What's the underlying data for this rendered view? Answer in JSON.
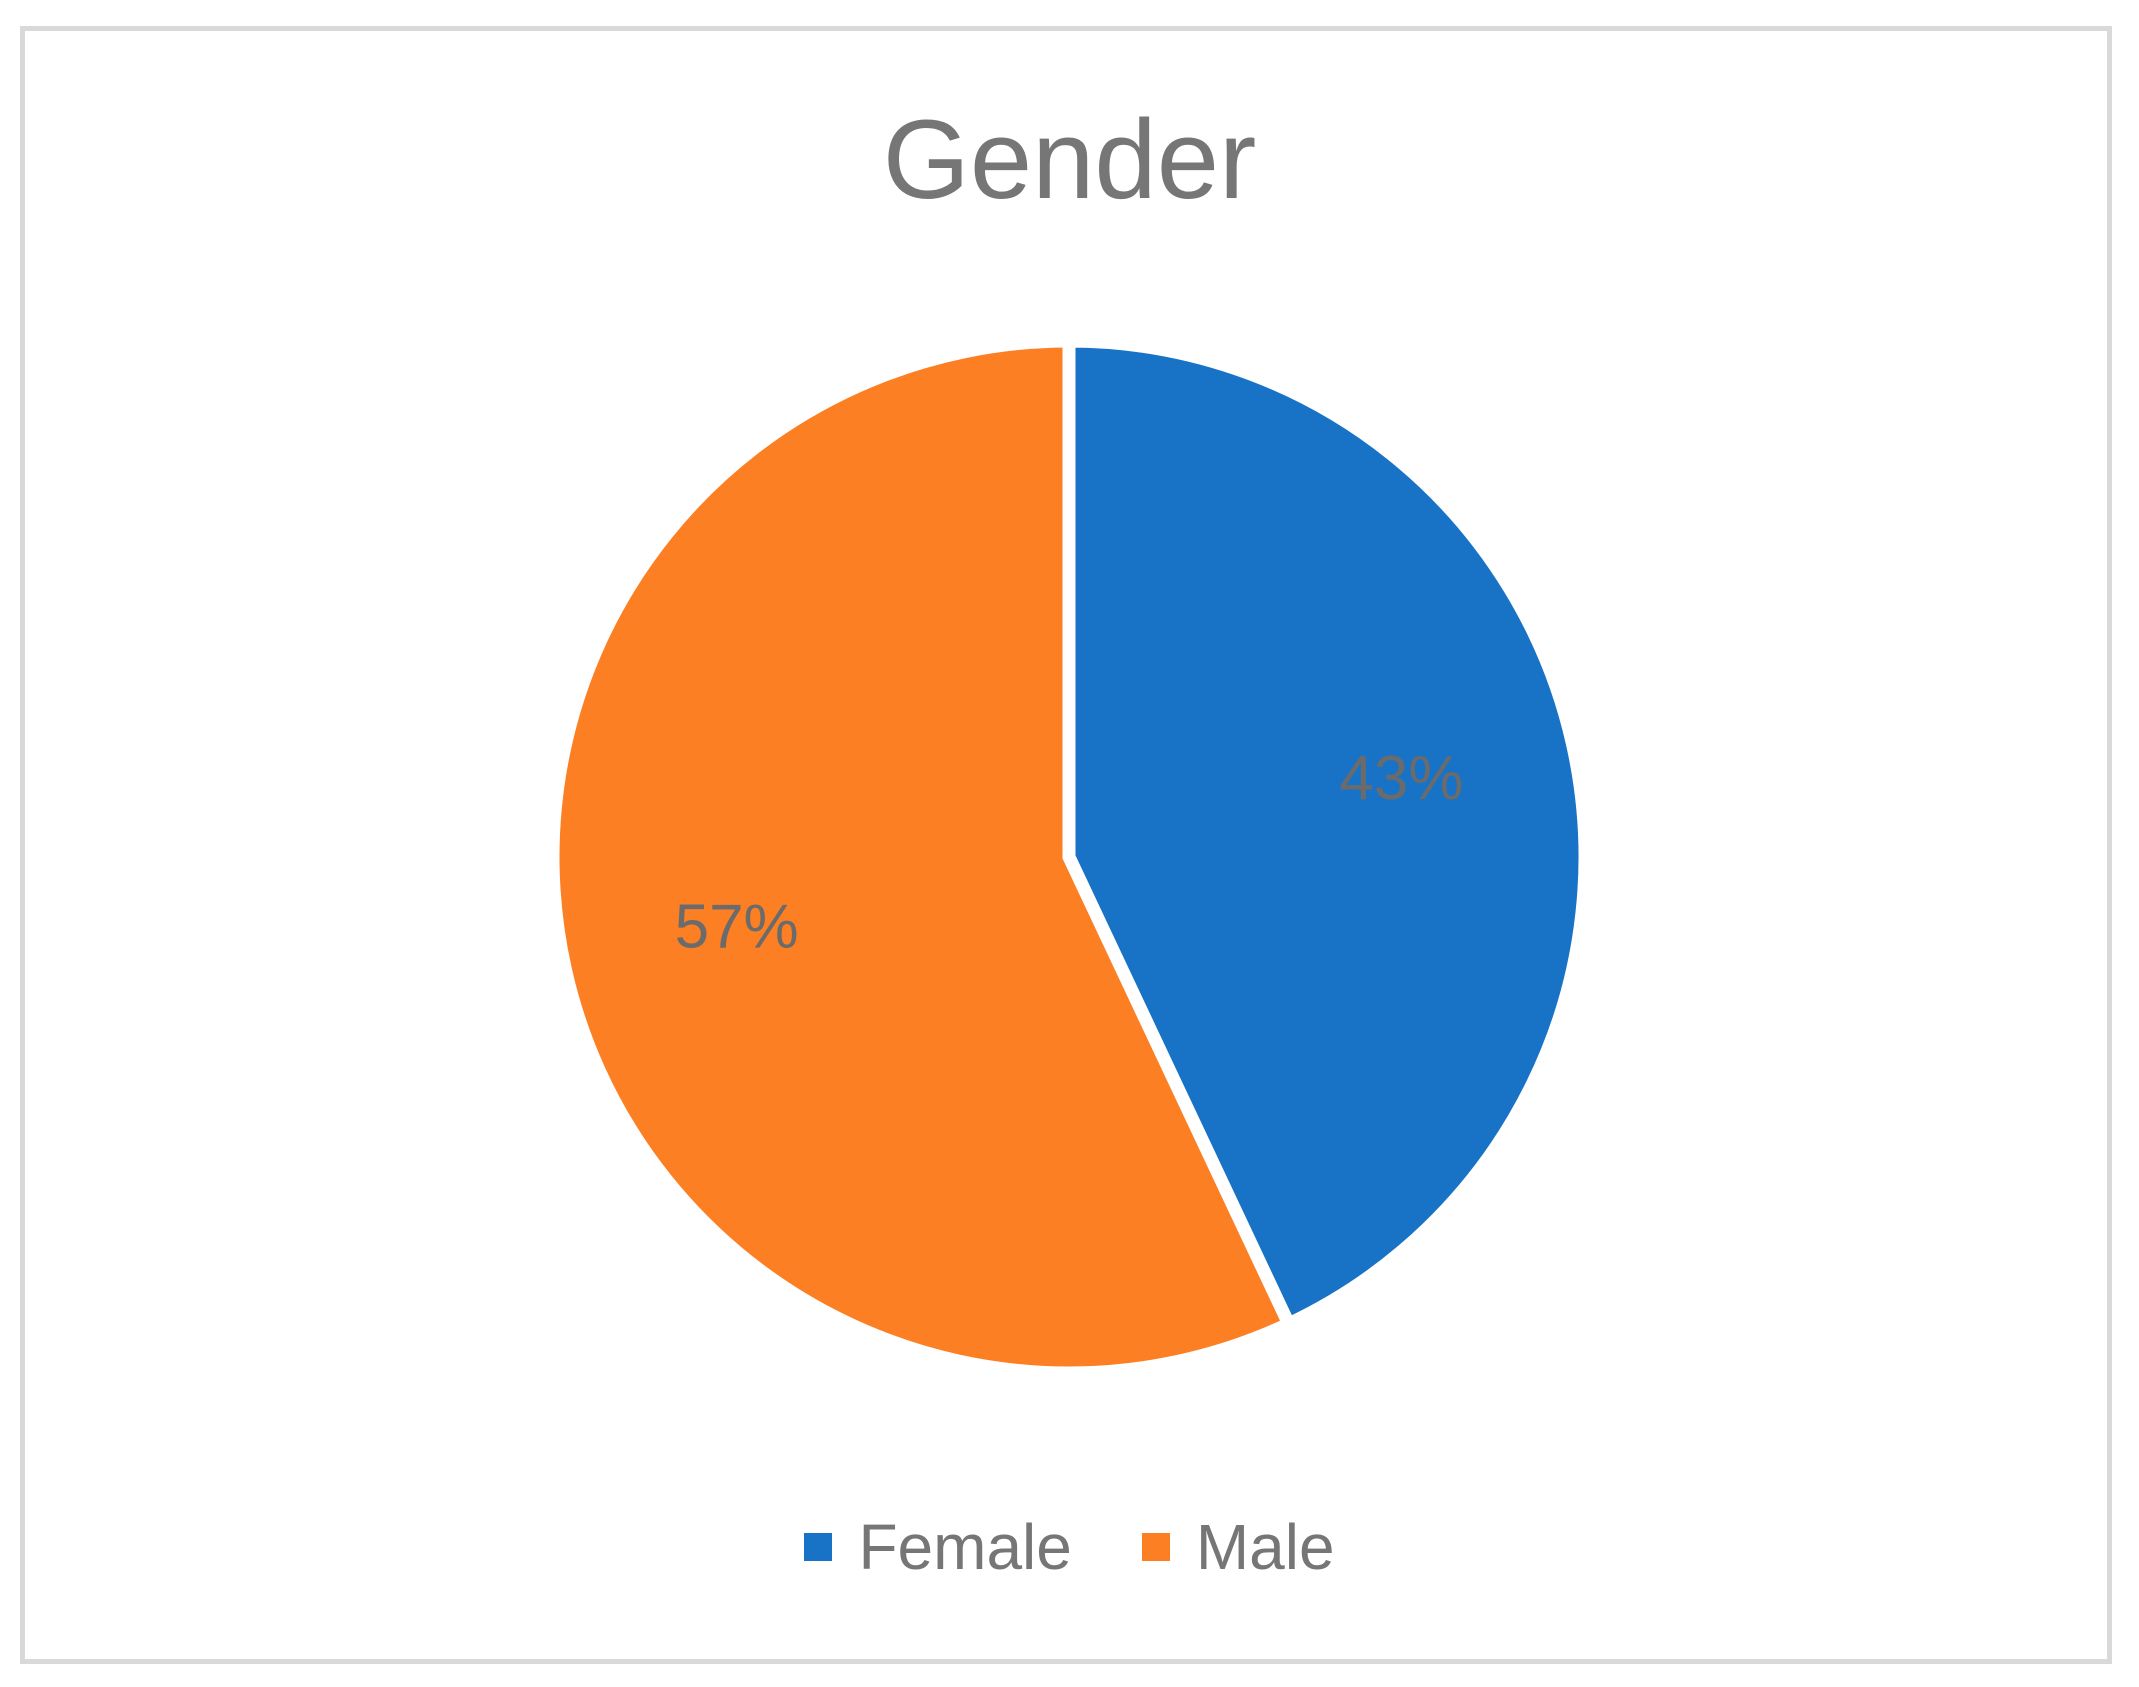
{
  "chart_data": {
    "type": "pie",
    "title": "Gender",
    "legend_position": "bottom",
    "slices": [
      {
        "label": "Female",
        "value": 43,
        "display": "43%",
        "color": "#1873C7"
      },
      {
        "label": "Male",
        "value": 57,
        "display": "57%",
        "color": "#FD7F24"
      }
    ]
  },
  "legend": {
    "items": [
      {
        "label": "Female",
        "color": "#1873C7"
      },
      {
        "label": "Male",
        "color": "#FD7F24"
      }
    ]
  }
}
